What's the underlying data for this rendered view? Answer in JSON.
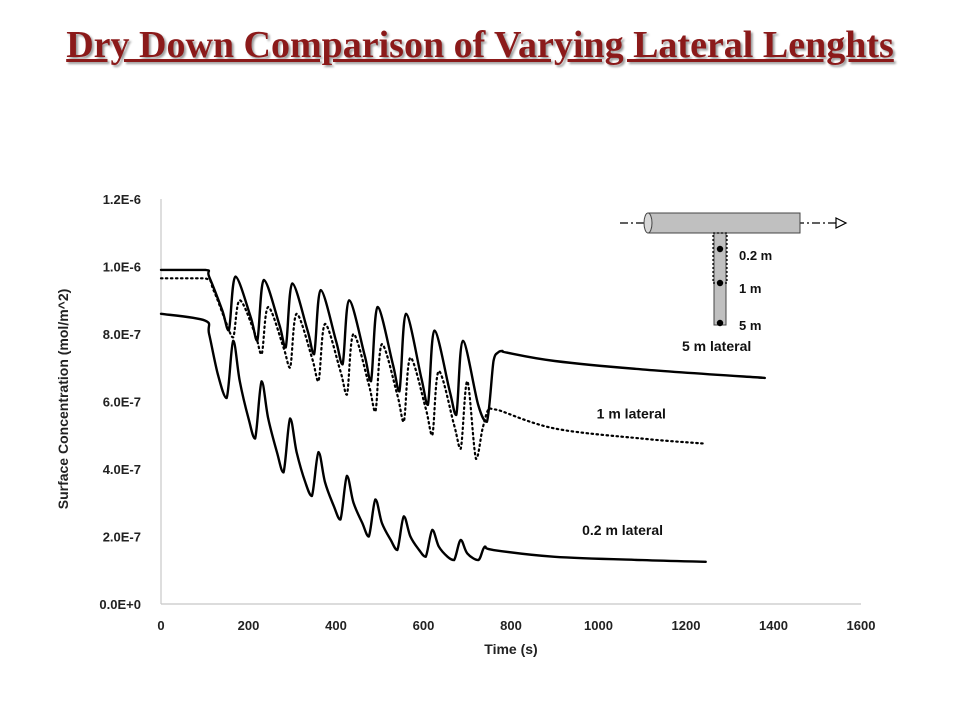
{
  "title": "Dry Down Comparison of Varying Lateral Lenghts",
  "colors": {
    "title": "#8b1a1a",
    "axis": "#c8c8c8",
    "series": "#000000",
    "pipe": "#c0c0c0"
  },
  "inset": {
    "labels": [
      "0.2 m",
      "1 m",
      "5 m"
    ]
  },
  "chart_data": {
    "type": "line",
    "title": "",
    "xlabel": "Time (s)",
    "ylabel": "Surface Concentration (mol/m^2)",
    "xlim": [
      0,
      1600
    ],
    "ylim": [
      0,
      1.2e-06
    ],
    "xticks": [
      0,
      200,
      400,
      600,
      800,
      1000,
      1200,
      1400,
      1600
    ],
    "yticks": [
      0,
      2e-07,
      4e-07,
      6e-07,
      8e-07,
      1e-06,
      1.2e-06
    ],
    "xtick_labels": [
      "0",
      "200",
      "400",
      "600",
      "800",
      "1000",
      "1200",
      "1400",
      "1600"
    ],
    "ytick_labels": [
      "0.0E+0",
      "2.0E-7",
      "4.0E-7",
      "6.0E-7",
      "8.0E-7",
      "1.0E-6",
      "1.2E-6"
    ],
    "grid": false,
    "series": [
      {
        "name": "5 m lateral",
        "style": "solid",
        "x": [
          0,
          100,
          110,
          140,
          155,
          170,
          205,
          220,
          235,
          270,
          285,
          300,
          335,
          350,
          365,
          400,
          415,
          430,
          465,
          480,
          495,
          530,
          545,
          560,
          595,
          610,
          625,
          660,
          675,
          690,
          725,
          745,
          760,
          770,
          780,
          790,
          900,
          1100,
          1380
        ],
        "y": [
          9.9e-07,
          9.9e-07,
          9.7e-07,
          8.7e-07,
          8.1e-07,
          9.7e-07,
          8.5e-07,
          7.8e-07,
          9.6e-07,
          8.3e-07,
          7.6e-07,
          9.5e-07,
          8.1e-07,
          7.4e-07,
          9.3e-07,
          7.8e-07,
          7.1e-07,
          9e-07,
          7.4e-07,
          6.6e-07,
          8.8e-07,
          7.1e-07,
          6.3e-07,
          8.6e-07,
          6.7e-07,
          5.9e-07,
          8.1e-07,
          6.3e-07,
          5.6e-07,
          7.8e-07,
          5.9e-07,
          5.4e-07,
          7.2e-07,
          7.45e-07,
          7.5e-07,
          7.45e-07,
          7.2e-07,
          6.95e-07,
          6.7e-07
        ]
      },
      {
        "name": "1 m lateral",
        "style": "dotted",
        "x": [
          0,
          100,
          120,
          150,
          165,
          180,
          215,
          230,
          245,
          280,
          295,
          310,
          345,
          360,
          375,
          410,
          425,
          440,
          475,
          490,
          505,
          540,
          555,
          570,
          605,
          620,
          635,
          670,
          685,
          700,
          720,
          735,
          750,
          770,
          900,
          1100,
          1245
        ],
        "y": [
          9.65e-07,
          9.65e-07,
          9.3e-07,
          8.3e-07,
          7.9e-07,
          9e-07,
          8e-07,
          7.4e-07,
          8.8e-07,
          7.6e-07,
          7e-07,
          8.6e-07,
          7.3e-07,
          6.6e-07,
          8.3e-07,
          6.9e-07,
          6.2e-07,
          8e-07,
          6.5e-07,
          5.7e-07,
          7.7e-07,
          6.2e-07,
          5.4e-07,
          7.3e-07,
          5.8e-07,
          5e-07,
          6.9e-07,
          5.3e-07,
          4.6e-07,
          6.6e-07,
          4.3e-07,
          5.2e-07,
          5.8e-07,
          5.75e-07,
          5.2e-07,
          4.9e-07,
          4.75e-07
        ]
      },
      {
        "name": "0.2 m lateral",
        "style": "solid",
        "x": [
          0,
          100,
          110,
          130,
          150,
          165,
          180,
          200,
          215,
          230,
          245,
          265,
          280,
          295,
          310,
          330,
          345,
          360,
          375,
          395,
          410,
          425,
          440,
          460,
          475,
          490,
          505,
          525,
          540,
          555,
          570,
          590,
          605,
          620,
          635,
          655,
          670,
          685,
          700,
          725,
          740,
          760,
          900,
          1100,
          1245
        ],
        "y": [
          8.6e-07,
          8.4e-07,
          8e-07,
          6.8e-07,
          6.1e-07,
          7.8e-07,
          6.6e-07,
          5.5e-07,
          4.9e-07,
          6.6e-07,
          5.5e-07,
          4.5e-07,
          3.9e-07,
          5.5e-07,
          4.5e-07,
          3.6e-07,
          3.2e-07,
          4.5e-07,
          3.6e-07,
          2.9e-07,
          2.5e-07,
          3.8e-07,
          3e-07,
          2.4e-07,
          2e-07,
          3.1e-07,
          2.4e-07,
          1.9e-07,
          1.6e-07,
          2.6e-07,
          2e-07,
          1.6e-07,
          1.4e-07,
          2.2e-07,
          1.7e-07,
          1.4e-07,
          1.3e-07,
          1.9e-07,
          1.5e-07,
          1.3e-07,
          1.7e-07,
          1.6e-07,
          1.4e-07,
          1.3e-07,
          1.25e-07
        ]
      }
    ],
    "annotations": [
      {
        "text": "5 m lateral",
        "x": 1270,
        "y": 7.5e-07
      },
      {
        "text": "1 m lateral",
        "x": 1075,
        "y": 5.5e-07
      },
      {
        "text": "0.2 m lateral",
        "x": 1055,
        "y": 2.05e-07
      }
    ]
  }
}
